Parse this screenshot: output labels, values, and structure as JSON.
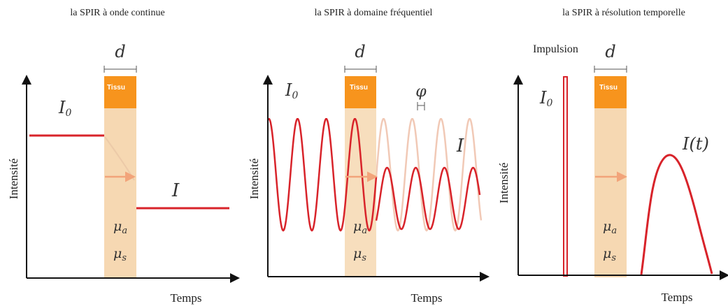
{
  "panels": [
    {
      "id": "cw",
      "title": "la SPIR à onde continue",
      "x_label": "Temps",
      "y_label": "Intensité",
      "thickness_label": "d",
      "tissue_label": "Tissu",
      "incident_label": "I0",
      "transmitted_label": "I",
      "absorption_label": "μa",
      "scattering_label": "μs"
    },
    {
      "id": "fd",
      "title": "la SPIR à domaine fréquentiel",
      "x_label": "Temps",
      "y_label": "Intensité",
      "thickness_label": "d",
      "tissue_label": "Tissu",
      "incident_label": "I0",
      "transmitted_label": "I",
      "phase_label": "φ",
      "absorption_label": "μa",
      "scattering_label": "μs"
    },
    {
      "id": "td",
      "title": "la SPIR à résolution temporelle",
      "x_label": "Temps",
      "y_label": "Intensité",
      "thickness_label": "d",
      "tissue_label": "Tissu",
      "pulse_label": "Impulsion",
      "incident_label": "I0",
      "transmitted_label": "I(t)",
      "absorption_label": "μa",
      "scattering_label": "μs"
    }
  ],
  "colors": {
    "signal": "#d8232a",
    "signal_faded": "#f1c9b6",
    "tissue_box": "#f7941d",
    "tissue_body": "#f6d8b2",
    "arrow": "#f2a47a",
    "axis": "#111111"
  }
}
